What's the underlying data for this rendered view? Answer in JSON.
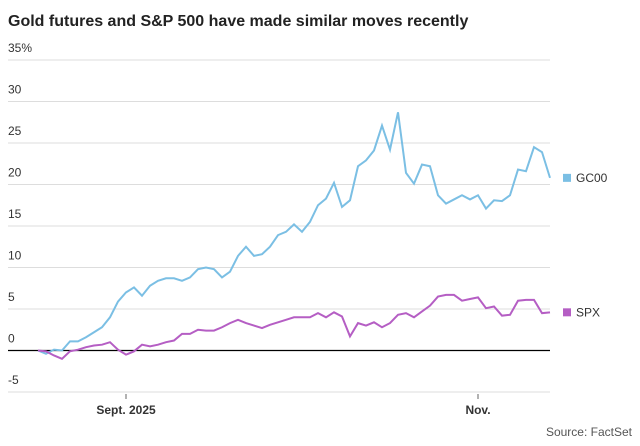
{
  "chart_data": {
    "type": "line",
    "title": "Gold futures and S&P 500 have made similar moves recently",
    "source": "Source: FactSet",
    "categories": [
      null,
      null,
      null,
      null,
      null,
      null,
      null,
      null,
      null,
      null,
      null,
      "Sept. 2025",
      null,
      null,
      null,
      null,
      null,
      null,
      null,
      null,
      null,
      null,
      null,
      null,
      null,
      null,
      null,
      null,
      null,
      null,
      null,
      null,
      null,
      null,
      null,
      null,
      null,
      null,
      null,
      null,
      null,
      null,
      null,
      null,
      null,
      null,
      null,
      null,
      null,
      null,
      null,
      null,
      null,
      null,
      null,
      "Nov.",
      null,
      null,
      null,
      null,
      null,
      null,
      null,
      null,
      null
    ],
    "series": [
      {
        "name": "GC00",
        "color": "#7bbfe4",
        "values": [
          0,
          -0.4,
          0.1,
          0,
          1.1,
          1.1,
          1.6,
          2.2,
          2.8,
          4,
          5.9,
          7,
          7.6,
          6.6,
          7.8,
          8.4,
          8.7,
          8.7,
          8.4,
          8.8,
          9.8,
          10,
          9.8,
          8.8,
          9.5,
          11.4,
          12.5,
          11.4,
          11.6,
          12.5,
          13.9,
          14.3,
          15.2,
          14.3,
          15.5,
          17.5,
          18.3,
          20.2,
          17.3,
          18.1,
          22.2,
          22.9,
          24.1,
          27.1,
          24.2,
          28.7,
          21.4,
          20.1,
          22.4,
          22.2,
          18.7,
          17.7,
          18.2,
          18.7,
          18.2,
          18.7,
          17.1,
          18.1,
          18,
          18.7,
          21.8,
          21.6,
          24.5,
          23.9,
          20.8
        ]
      },
      {
        "name": "SPX",
        "color": "#b55ec4",
        "values": [
          0,
          -0.1,
          -0.6,
          -1,
          -0.1,
          0.1,
          0.4,
          0.6,
          0.7,
          1,
          0.1,
          -0.5,
          -0.1,
          0.7,
          0.5,
          0.7,
          1,
          1.2,
          2,
          2,
          2.5,
          2.4,
          2.4,
          2.8,
          3.3,
          3.7,
          3.3,
          3,
          2.7,
          3.1,
          3.4,
          3.7,
          4,
          4,
          4,
          4.5,
          4,
          4.6,
          4.1,
          1.7,
          3.3,
          3,
          3.4,
          2.8,
          3.3,
          4.3,
          4.5,
          4,
          4.7,
          5.4,
          6.5,
          6.7,
          6.7,
          6,
          6.2,
          6.4,
          5.1,
          5.3,
          4.2,
          4.3,
          6,
          6.1,
          6.1,
          4.5,
          4.6
        ]
      }
    ],
    "ylim": [
      -5,
      35
    ],
    "yticks": [
      -5,
      0,
      5,
      10,
      15,
      20,
      25,
      30,
      {
        "value": 35,
        "label": "35%"
      }
    ],
    "grid": true,
    "legend": "right"
  }
}
